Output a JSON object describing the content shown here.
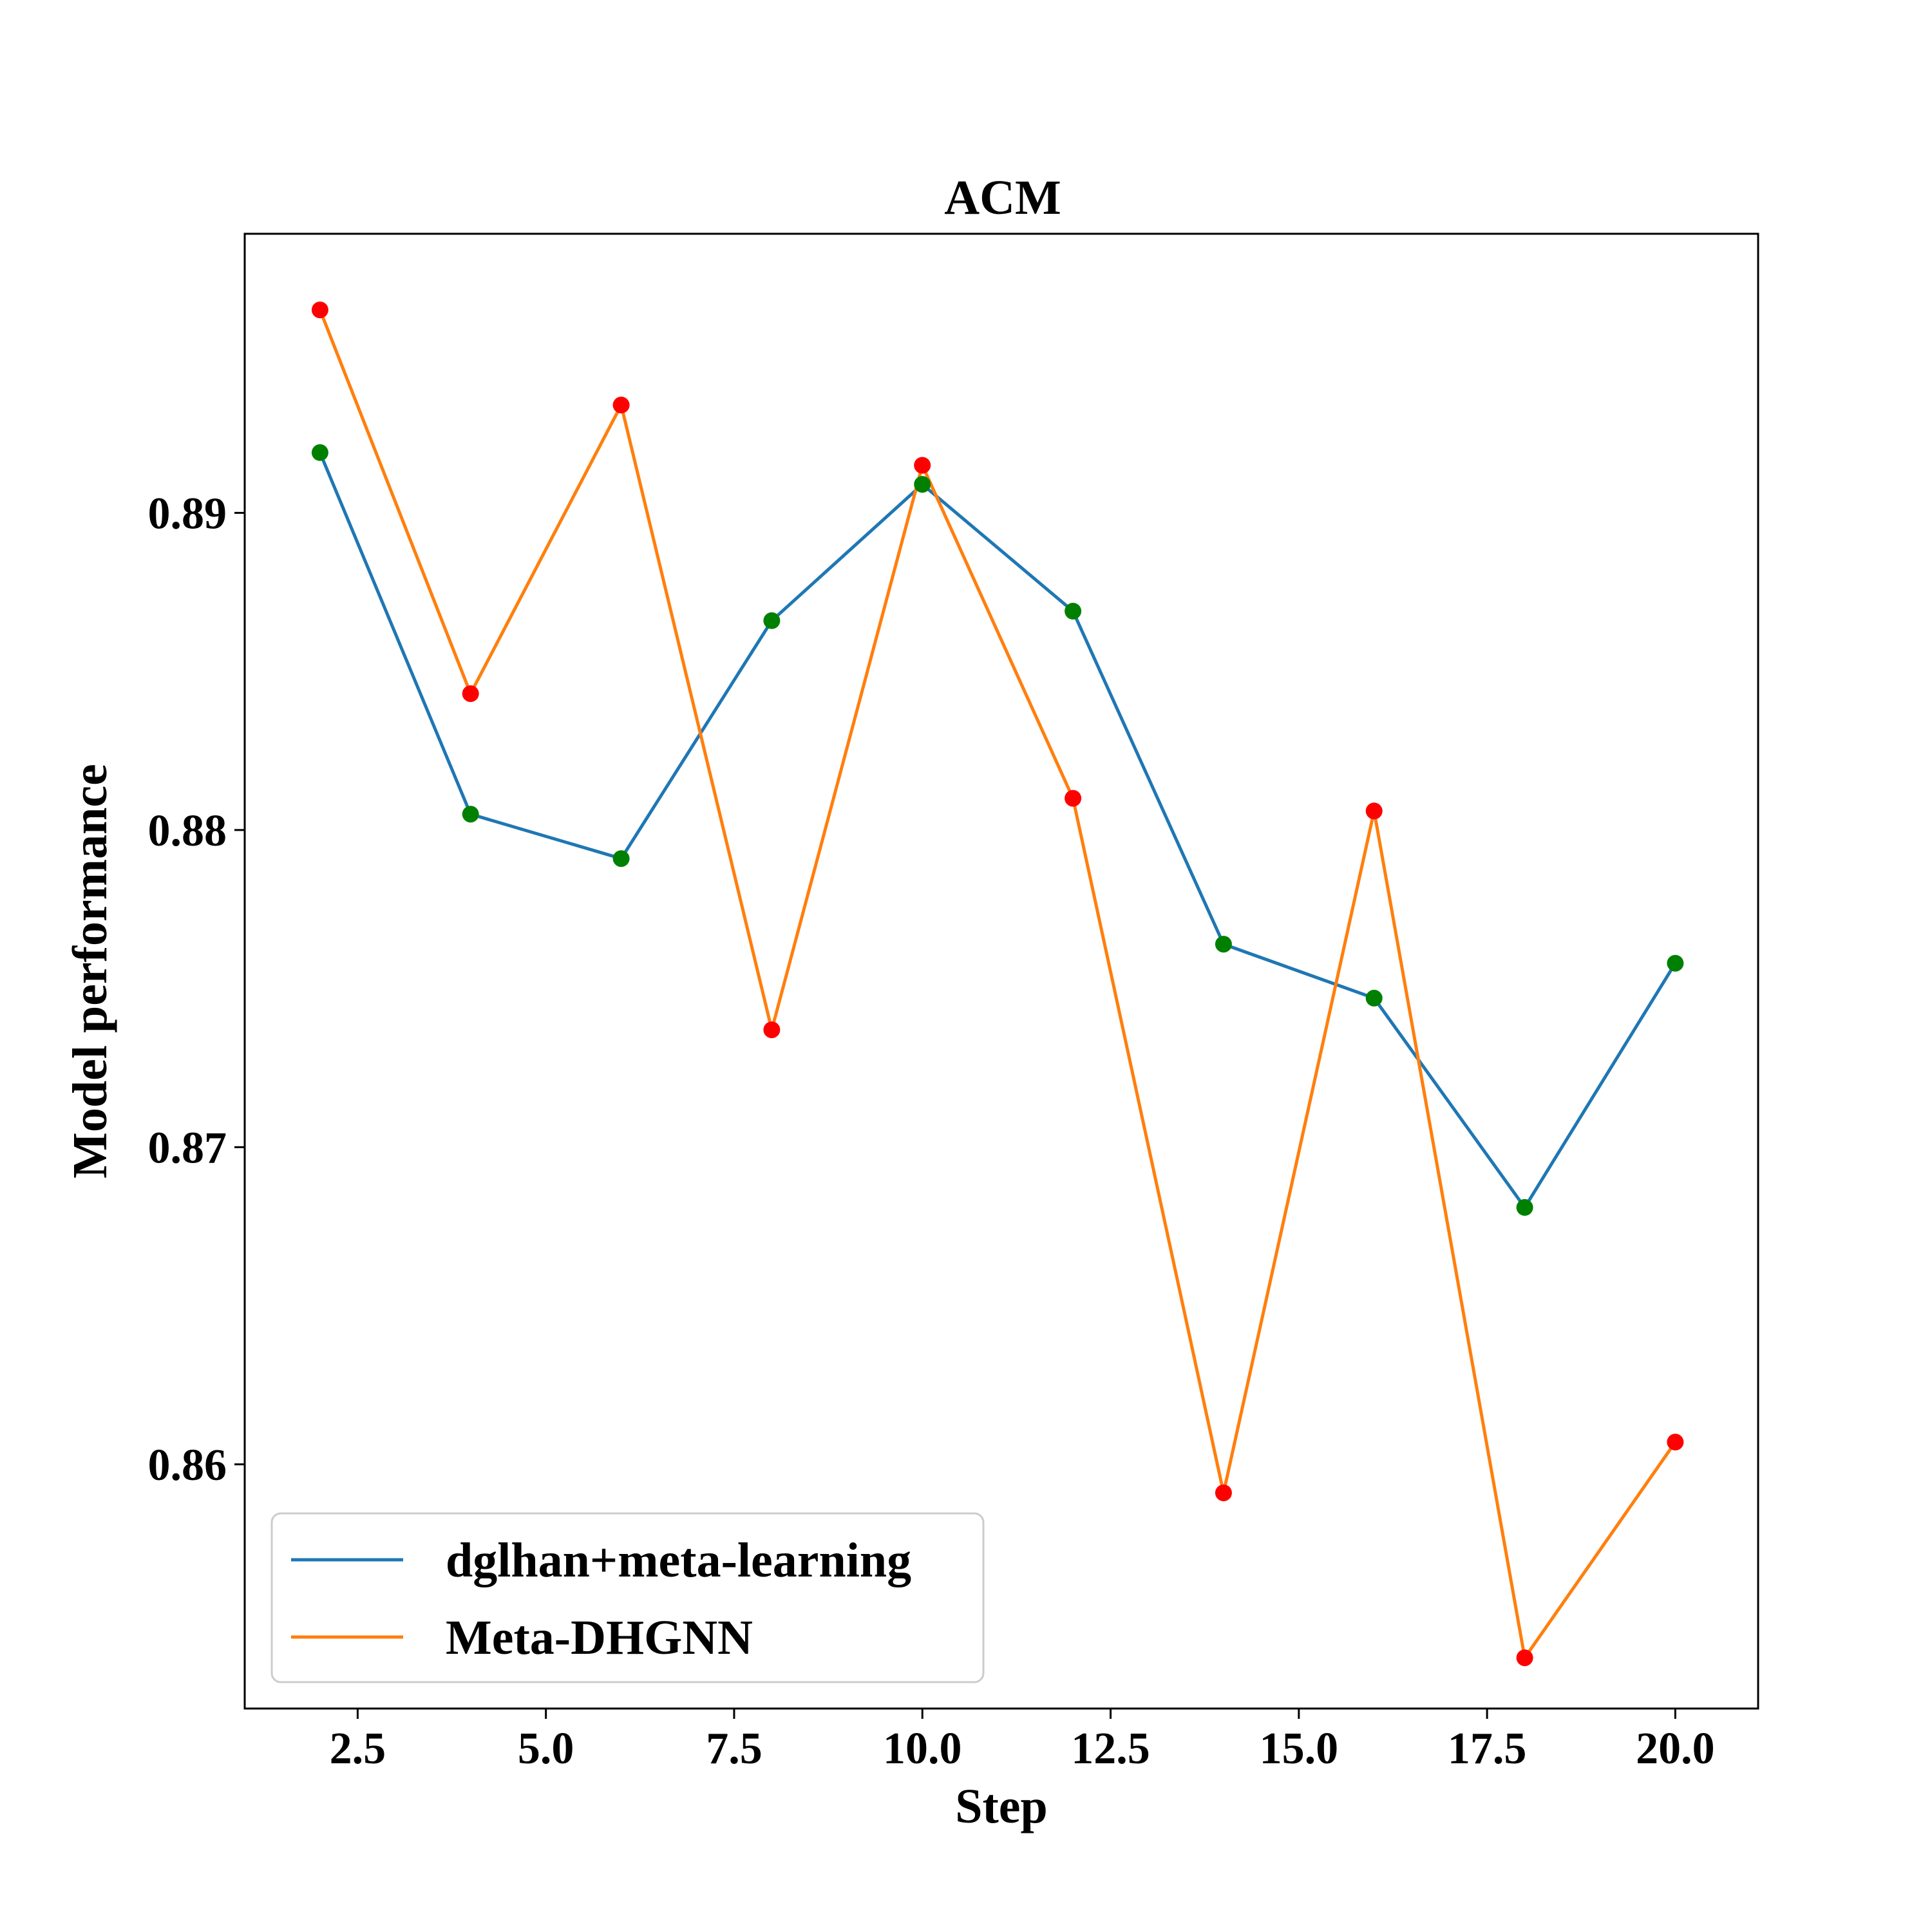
{
  "chart_data": {
    "type": "line",
    "title": "ACM",
    "xlabel": "Step",
    "ylabel": "Model performance",
    "xlim": [
      1.0,
      21.1
    ],
    "ylim": [
      0.8523,
      0.8988
    ],
    "xticks": [
      2.5,
      5.0,
      7.5,
      10.0,
      12.5,
      15.0,
      17.5,
      20.0
    ],
    "xtick_labels": [
      "2.5",
      "5.0",
      "7.5",
      "10.0",
      "12.5",
      "15.0",
      "17.5",
      "20.0"
    ],
    "yticks": [
      0.86,
      0.87,
      0.88,
      0.89
    ],
    "ytick_labels": [
      "0.86",
      "0.87",
      "0.88",
      "0.89"
    ],
    "grid": false,
    "legend_position": "lower-left",
    "x": [
      2,
      4,
      6,
      8,
      10,
      12,
      14,
      16,
      18,
      20
    ],
    "series": [
      {
        "name": "dglhan+meta-learning",
        "line_color": "#1f77b4",
        "marker_color": "#008000",
        "values": [
          0.8919,
          0.8805,
          0.8791,
          0.8866,
          0.8909,
          0.8869,
          0.8764,
          0.8747,
          0.8681,
          0.8758
        ]
      },
      {
        "name": "Meta-DHGNN",
        "line_color": "#ff7f0e",
        "marker_color": "#ff0000",
        "values": [
          0.8964,
          0.8843,
          0.8934,
          0.8737,
          0.8915,
          0.881,
          0.8591,
          0.8806,
          0.8539,
          0.8607
        ]
      }
    ]
  }
}
